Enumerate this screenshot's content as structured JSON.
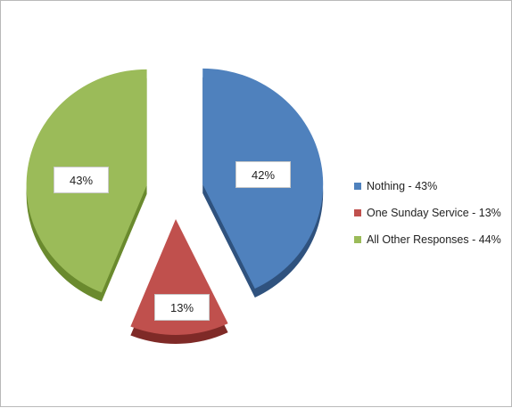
{
  "chart_data": {
    "type": "pie",
    "series": [
      {
        "slices": [
          {
            "legend": "Nothing - 43%",
            "value": 42,
            "label": "42%",
            "color": "#4f81bd",
            "side_color": "#2f527e"
          },
          {
            "legend": "One Sunday Service - 13%",
            "value": 13,
            "label": "13%",
            "color": "#c0504d",
            "side_color": "#7f2a27"
          },
          {
            "legend": "All Other Responses - 44%",
            "value": 43,
            "label": "43%",
            "color": "#9bbb59",
            "side_color": "#6a8a2e"
          }
        ]
      }
    ],
    "legend_position": "right",
    "exploded": true,
    "perspective": "3d"
  }
}
